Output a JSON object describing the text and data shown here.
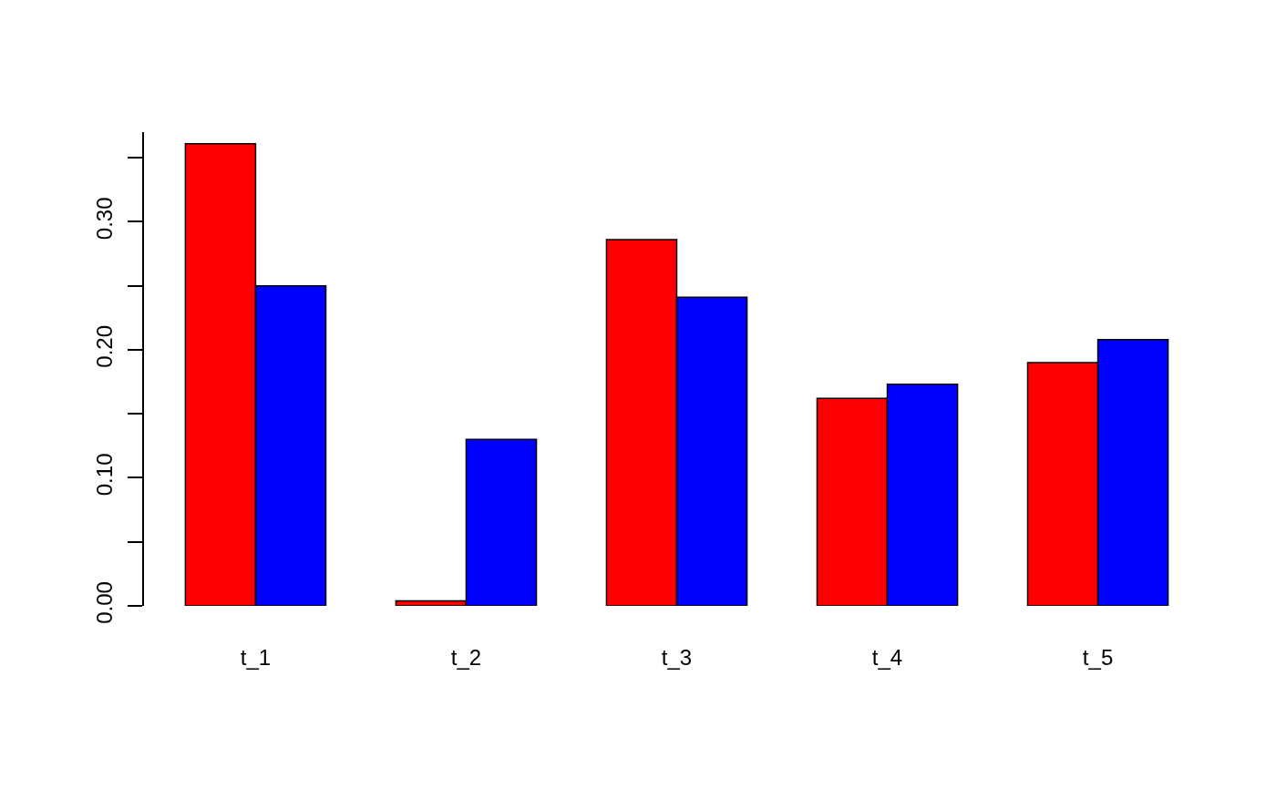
{
  "chart_data": {
    "type": "bar",
    "categories": [
      "t_1",
      "t_2",
      "t_3",
      "t_4",
      "t_5"
    ],
    "series": [
      {
        "color": "#ff0000",
        "values": [
          0.361,
          0.004,
          0.286,
          0.162,
          0.19
        ]
      },
      {
        "color": "#0000ff",
        "values": [
          0.25,
          0.13,
          0.241,
          0.173,
          0.208
        ]
      }
    ],
    "ylim": [
      0,
      0.37
    ],
    "yticks": [
      {
        "value": 0,
        "label": "0.00"
      },
      {
        "value": 0.05,
        "label": null
      },
      {
        "value": 0.1,
        "label": "0.10"
      },
      {
        "value": 0.15,
        "label": null
      },
      {
        "value": 0.2,
        "label": "0.20"
      },
      {
        "value": 0.25,
        "label": null
      },
      {
        "value": 0.3,
        "label": "0.30"
      },
      {
        "value": 0.35,
        "label": null
      }
    ],
    "legend": false
  }
}
